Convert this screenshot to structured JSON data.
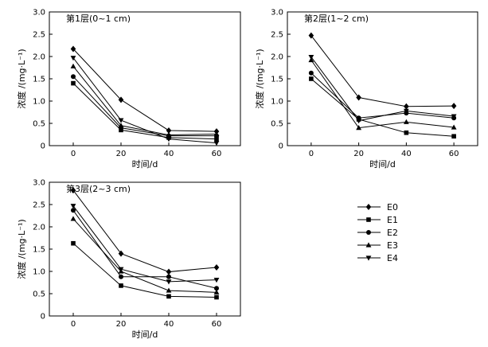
{
  "chart_data": [
    {
      "type": "line",
      "title": "第1层(0~1 cm)",
      "xlabel": "时间/d",
      "ylabel": "浓度 /(mg·L⁻¹)",
      "x": [
        0,
        20,
        40,
        60
      ],
      "xlim": [
        -10,
        70
      ],
      "ylim": [
        0,
        3.0
      ],
      "yticks": [
        "0",
        "0.5",
        "1.0",
        "1.5",
        "2.0",
        "2.5",
        "3.0"
      ],
      "xticks": [
        "0",
        "20",
        "40",
        "60"
      ],
      "series": [
        {
          "name": "E0",
          "values": [
            2.17,
            1.03,
            0.34,
            0.32
          ]
        },
        {
          "name": "E1",
          "values": [
            1.4,
            0.35,
            0.18,
            0.15
          ]
        },
        {
          "name": "E2",
          "values": [
            1.55,
            0.4,
            0.22,
            0.22
          ]
        },
        {
          "name": "E3",
          "values": [
            1.78,
            0.45,
            0.24,
            0.26
          ]
        },
        {
          "name": "E4",
          "values": [
            1.97,
            0.57,
            0.15,
            0.06
          ]
        }
      ]
    },
    {
      "type": "line",
      "title": "第2层(1~2 cm)",
      "xlabel": "时间/d",
      "ylabel": "浓度 /(mg·L⁻¹)",
      "x": [
        0,
        20,
        40,
        60
      ],
      "xlim": [
        -10,
        70
      ],
      "ylim": [
        0,
        3.0
      ],
      "yticks": [
        "0",
        "0.5",
        "1.0",
        "1.5",
        "2.0",
        "2.5",
        "3.0"
      ],
      "xticks": [
        "0",
        "20",
        "40",
        "60"
      ],
      "series": [
        {
          "name": "E0",
          "values": [
            2.47,
            1.08,
            0.88,
            0.89
          ]
        },
        {
          "name": "E1",
          "values": [
            1.5,
            0.59,
            0.29,
            0.21
          ]
        },
        {
          "name": "E2",
          "values": [
            1.63,
            0.62,
            0.73,
            0.62
          ]
        },
        {
          "name": "E3",
          "values": [
            1.92,
            0.4,
            0.53,
            0.41
          ]
        },
        {
          "name": "E4",
          "values": [
            1.99,
            0.56,
            0.78,
            0.66
          ]
        }
      ]
    },
    {
      "type": "line",
      "title": "第3层(2~3 cm)",
      "xlabel": "时间/d",
      "ylabel": "浓度 /(mg·L⁻¹)",
      "x": [
        0,
        20,
        40,
        60
      ],
      "xlim": [
        -10,
        70
      ],
      "ylim": [
        0,
        3.0
      ],
      "yticks": [
        "0",
        "0.5",
        "1.0",
        "1.5",
        "2.0",
        "2.5",
        "3.0"
      ],
      "xticks": [
        "0",
        "20",
        "40",
        "60"
      ],
      "series": [
        {
          "name": "E0",
          "values": [
            2.82,
            1.4,
            0.99,
            1.09
          ]
        },
        {
          "name": "E1",
          "values": [
            1.63,
            0.68,
            0.44,
            0.42
          ]
        },
        {
          "name": "E2",
          "values": [
            2.37,
            0.88,
            0.88,
            0.62
          ]
        },
        {
          "name": "E3",
          "values": [
            2.18,
            1.0,
            0.57,
            0.53
          ]
        },
        {
          "name": "E4",
          "values": [
            2.47,
            1.05,
            0.77,
            0.81
          ]
        }
      ]
    }
  ],
  "legend": [
    {
      "name": "E0",
      "marker": "diamond"
    },
    {
      "name": "E1",
      "marker": "square"
    },
    {
      "name": "E2",
      "marker": "circle"
    },
    {
      "name": "E3",
      "marker": "triangle-up"
    },
    {
      "name": "E4",
      "marker": "triangle-down"
    }
  ],
  "colors": {
    "line": "#000000",
    "background": "#ffffff"
  }
}
